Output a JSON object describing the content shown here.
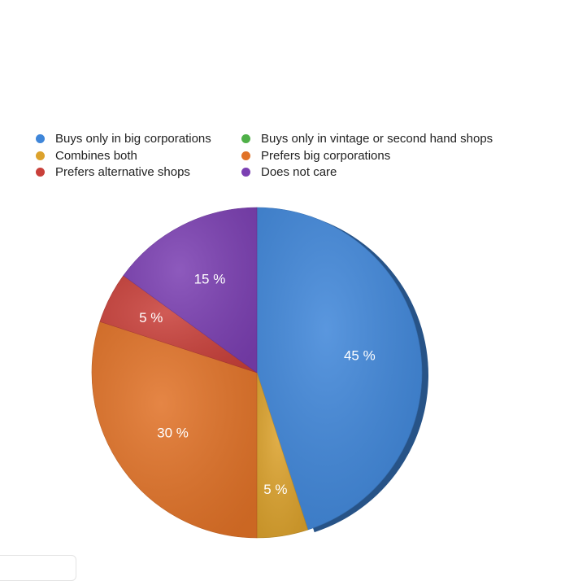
{
  "chart_data": {
    "type": "pie",
    "legend_placement": "top",
    "slices": [
      {
        "label": "Buys only in big corporations",
        "value": 45,
        "value_label": "45 %",
        "color": "#3f86d9"
      },
      {
        "label": "Buys only in vintage or second hand shops",
        "value": 0,
        "value_label": "",
        "color": "#4fb048"
      },
      {
        "label": "Combines both",
        "value": 5,
        "value_label": "5 %",
        "color": "#dca22c"
      },
      {
        "label": "Prefers big corporations",
        "value": 30,
        "value_label": "30 %",
        "color": "#e17227"
      },
      {
        "label": "Prefers alternative shops",
        "value": 5,
        "value_label": "5 %",
        "color": "#c9403a"
      },
      {
        "label": "Does not care",
        "value": 15,
        "value_label": "15 %",
        "color": "#7b3fb2"
      }
    ],
    "legend_order": [
      0,
      1,
      2,
      3,
      4,
      5
    ]
  }
}
